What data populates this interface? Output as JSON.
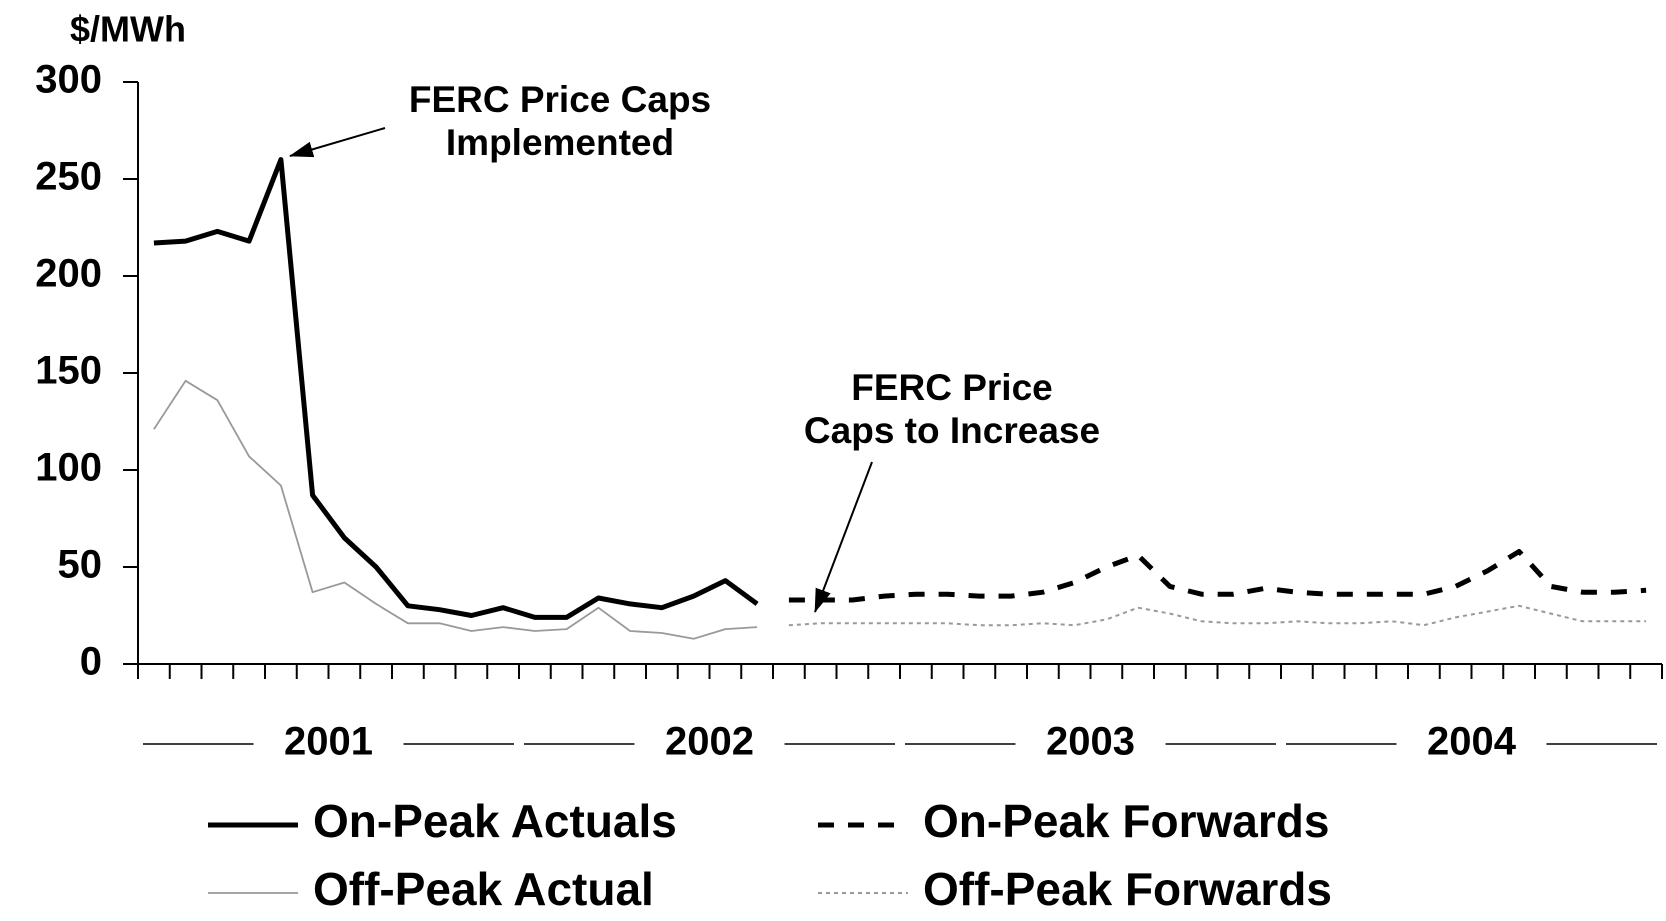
{
  "chart_data": {
    "type": "line",
    "y_axis_label": "$/MWh",
    "ylim": [
      0,
      300
    ],
    "yticks": [
      0,
      50,
      100,
      150,
      200,
      250,
      300
    ],
    "categories": [
      null,
      null,
      null,
      null,
      null,
      null,
      null,
      null,
      null,
      null,
      null,
      null,
      null,
      null,
      null,
      null,
      null,
      null,
      null,
      null,
      null,
      null,
      null,
      null,
      null,
      null,
      null,
      null,
      null,
      null,
      null,
      null,
      null,
      null,
      null,
      null,
      null,
      null,
      null,
      null,
      null,
      null,
      null,
      null,
      null,
      null,
      null,
      null
    ],
    "groups": [
      "2001",
      "2002",
      "2003",
      "2004"
    ],
    "series": [
      {
        "name": "On-Peak Actuals",
        "color": "#000000",
        "style": "solid",
        "values": [
          217,
          218,
          223,
          218,
          260,
          87,
          65,
          50,
          30,
          28,
          25,
          29,
          24,
          24,
          34,
          31,
          29,
          35,
          43,
          31,
          null,
          null,
          null,
          null,
          null,
          null,
          null,
          null,
          null,
          null,
          null,
          null,
          null,
          null,
          null,
          null,
          null,
          null,
          null,
          null,
          null,
          null,
          null,
          null,
          null,
          null,
          null,
          null
        ]
      },
      {
        "name": "On-Peak Forwards",
        "color": "#000000",
        "style": "dashed",
        "values": [
          null,
          null,
          null,
          null,
          null,
          null,
          null,
          null,
          null,
          null,
          null,
          null,
          null,
          null,
          null,
          null,
          null,
          null,
          null,
          null,
          33,
          33,
          33,
          35,
          36,
          36,
          35,
          35,
          37,
          42,
          50,
          56,
          40,
          36,
          36,
          39,
          37,
          36,
          36,
          36,
          36,
          40,
          48,
          58,
          40,
          37,
          37,
          38
        ]
      },
      {
        "name": "Off-Peak Actual",
        "color": "#999999",
        "style": "thin",
        "values": [
          121,
          146,
          136,
          107,
          92,
          37,
          42,
          31,
          21,
          21,
          17,
          19,
          17,
          18,
          29,
          17,
          16,
          13,
          18,
          19,
          null,
          null,
          null,
          null,
          null,
          null,
          null,
          null,
          null,
          null,
          null,
          null,
          null,
          null,
          null,
          null,
          null,
          null,
          null,
          null,
          null,
          null,
          null,
          null,
          null,
          null,
          null,
          null
        ]
      },
      {
        "name": "Off-Peak Forwards",
        "color": "#999999",
        "style": "dotted",
        "values": [
          null,
          null,
          null,
          null,
          null,
          null,
          null,
          null,
          null,
          null,
          null,
          null,
          null,
          null,
          null,
          null,
          null,
          null,
          null,
          null,
          20,
          21,
          21,
          21,
          21,
          21,
          20,
          20,
          21,
          20,
          23,
          29,
          26,
          22,
          21,
          21,
          22,
          21,
          21,
          22,
          20,
          24,
          27,
          30,
          26,
          22,
          22,
          22
        ]
      }
    ],
    "annotations": [
      {
        "lines": [
          "FERC Price Caps",
          "Implemented"
        ]
      },
      {
        "lines": [
          "FERC Price",
          "Caps to Increase"
        ]
      }
    ]
  }
}
